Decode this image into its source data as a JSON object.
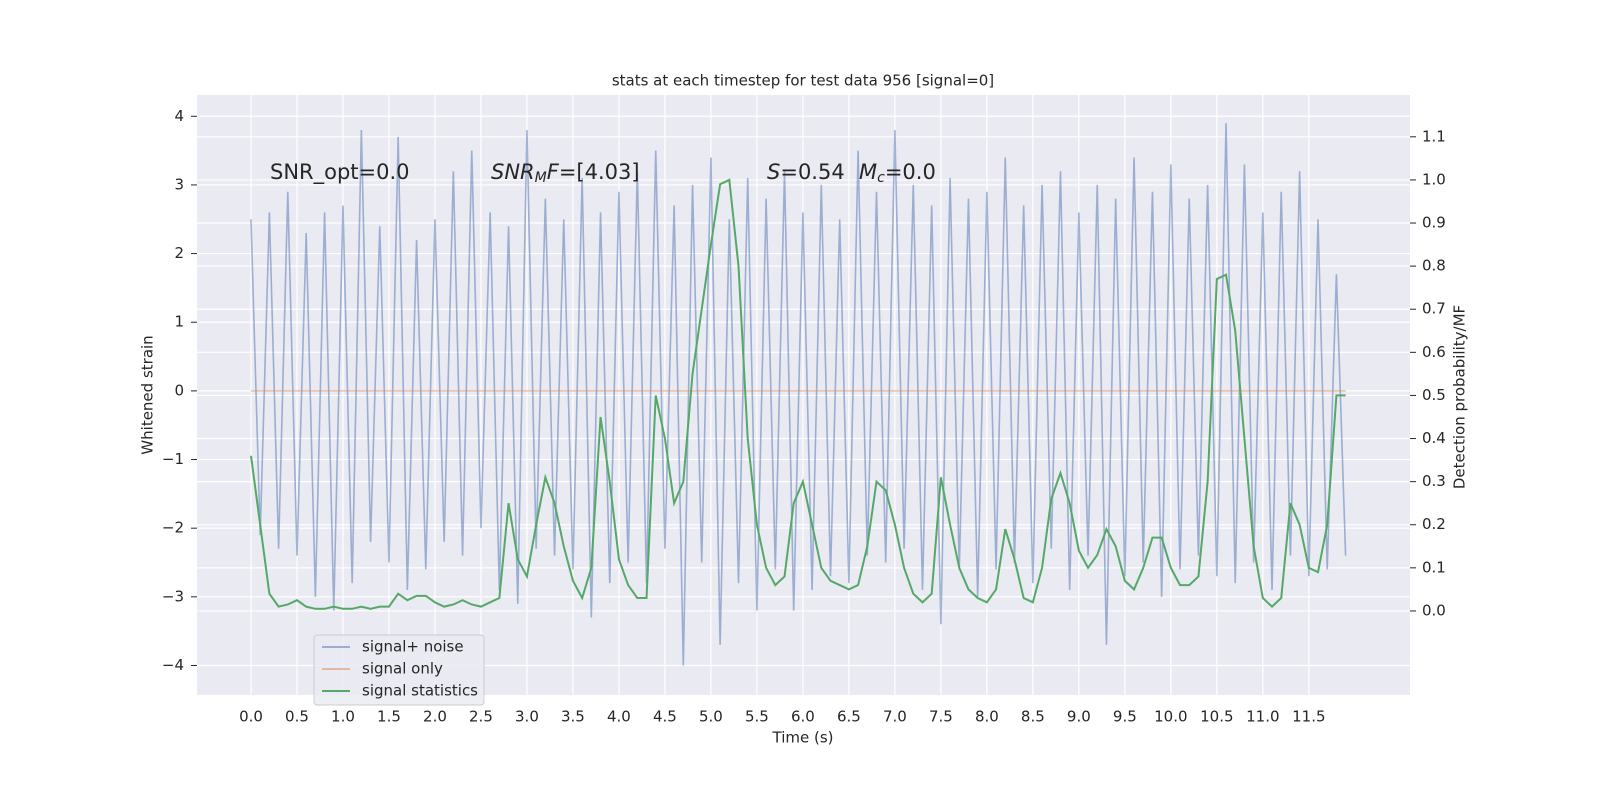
{
  "chart_data": {
    "type": "line",
    "title": "stats at each timestep for test data 956 [signal=0]",
    "xlabel": "Time (s)",
    "ylabel": "Whitened strain",
    "y2label": "Detection probability/MF",
    "background": "#eaeaf2",
    "grid": true,
    "legend_position": "lower left",
    "annotations": [
      {
        "text": "SNR_opt=0.0"
      },
      {
        "text": "SNR",
        "sub": "M",
        "text2": "F",
        "tail": "=[4.03]"
      },
      {
        "text": "S",
        "tail": "=0.54"
      },
      {
        "text": "M",
        "sub": "c",
        "tail": "=0.0"
      }
    ],
    "xlim": [
      -0.587,
      12.6
    ],
    "ylim": [
      -4.43,
      4.31
    ],
    "y2lim": [
      -0.195,
      1.197
    ],
    "xticks": [
      {
        "value": 0,
        "label": "0.0"
      },
      {
        "value": 0.5,
        "label": "0.5"
      },
      {
        "value": 1,
        "label": "1.0"
      },
      {
        "value": 1.5,
        "label": "1.5"
      },
      {
        "value": 2,
        "label": "2.0"
      },
      {
        "value": 2.5,
        "label": "2.5"
      },
      {
        "value": 3,
        "label": "3.0"
      },
      {
        "value": 3.5,
        "label": "3.5"
      },
      {
        "value": 4,
        "label": "4.0"
      },
      {
        "value": 4.5,
        "label": "4.5"
      },
      {
        "value": 5,
        "label": "5.0"
      },
      {
        "value": 5.5,
        "label": "5.5"
      },
      {
        "value": 6,
        "label": "6.0"
      },
      {
        "value": 6.5,
        "label": "6.5"
      },
      {
        "value": 7,
        "label": "7.0"
      },
      {
        "value": 7.5,
        "label": "7.5"
      },
      {
        "value": 8,
        "label": "8.0"
      },
      {
        "value": 8.5,
        "label": "8.5"
      },
      {
        "value": 9,
        "label": "9.0"
      },
      {
        "value": 9.5,
        "label": "9.5"
      },
      {
        "value": 10,
        "label": "10.0"
      },
      {
        "value": 10.5,
        "label": "10.5"
      },
      {
        "value": 11,
        "label": "11.0"
      },
      {
        "value": 11.5,
        "label": "11.5"
      }
    ],
    "yticks": [
      {
        "value": -4,
        "label": "−4"
      },
      {
        "value": -3,
        "label": "−3"
      },
      {
        "value": -2,
        "label": "−2"
      },
      {
        "value": -1,
        "label": "−1"
      },
      0,
      1,
      2,
      3,
      4
    ],
    "y2ticks": [
      {
        "value": 0,
        "label": "0.0"
      },
      {
        "value": 0.1,
        "label": "0.1"
      },
      {
        "value": 0.2,
        "label": "0.2"
      },
      {
        "value": 0.3,
        "label": "0.3"
      },
      {
        "value": 0.4,
        "label": "0.4"
      },
      {
        "value": 0.5,
        "label": "0.5"
      },
      {
        "value": 0.6,
        "label": "0.6"
      },
      {
        "value": 0.7,
        "label": "0.7"
      },
      {
        "value": 0.8,
        "label": "0.8"
      },
      {
        "value": 0.9,
        "label": "0.9"
      },
      {
        "value": 1.0,
        "label": "1.0"
      },
      {
        "value": 1.1,
        "label": "1.1"
      }
    ],
    "x": [
      0,
      0.1,
      0.2,
      0.3,
      0.4,
      0.5,
      0.6,
      0.7,
      0.8,
      0.9,
      1,
      1.1,
      1.2,
      1.3,
      1.4,
      1.5,
      1.6,
      1.7,
      1.8,
      1.9,
      2,
      2.1,
      2.2,
      2.3,
      2.4,
      2.5,
      2.6,
      2.7,
      2.8,
      2.9,
      3,
      3.1,
      3.2,
      3.3,
      3.4,
      3.5,
      3.6,
      3.7,
      3.8,
      3.9,
      4,
      4.1,
      4.2,
      4.3,
      4.4,
      4.5,
      4.6,
      4.7,
      4.8,
      4.9,
      5,
      5.1,
      5.2,
      5.3,
      5.4,
      5.5,
      5.6,
      5.7,
      5.8,
      5.9,
      6,
      6.1,
      6.2,
      6.3,
      6.4,
      6.5,
      6.6,
      6.7,
      6.8,
      6.9,
      7,
      7.1,
      7.2,
      7.3,
      7.4,
      7.5,
      7.6,
      7.7,
      7.8,
      7.9,
      8,
      8.1,
      8.2,
      8.3,
      8.4,
      8.5,
      8.6,
      8.7,
      8.8,
      8.9,
      9,
      9.1,
      9.2,
      9.3,
      9.4,
      9.5,
      9.6,
      9.7,
      9.8,
      9.9,
      10,
      10.1,
      10.2,
      10.3,
      10.4,
      10.5,
      10.6,
      10.7,
      10.8,
      10.9,
      11,
      11.1,
      11.2,
      11.3,
      11.4,
      11.5,
      11.6,
      11.7,
      11.8,
      11.9
    ],
    "series": [
      {
        "name": "signal+ noise",
        "color": "#4c72b0",
        "opacity": 0.5,
        "values": [
          2.5,
          -2.1,
          2.6,
          -2.3,
          2.9,
          -2.4,
          2.3,
          -3.0,
          2.6,
          -3.2,
          2.7,
          -2.8,
          3.8,
          -2.2,
          2.4,
          -2.5,
          3.7,
          -2.9,
          2.2,
          -2.6,
          2.5,
          -2.2,
          3.2,
          -2.4,
          3.5,
          -2.0,
          2.6,
          -2.9,
          2.4,
          -3.1,
          3.8,
          -2.3,
          2.8,
          -2.4,
          2.5,
          -2.6,
          3.1,
          -3.3,
          2.6,
          -2.8,
          2.9,
          -2.5,
          3.2,
          -2.8,
          3.5,
          -2.3,
          2.7,
          -4.0,
          3.0,
          -2.5,
          3.4,
          -3.7,
          2.5,
          -2.8,
          3.1,
          -3.2,
          2.8,
          -2.6,
          3.2,
          -3.2,
          2.6,
          -2.9,
          3.0,
          -2.7,
          2.5,
          -2.8,
          3.5,
          -2.4,
          2.9,
          -2.5,
          3.8,
          -2.3,
          3.0,
          -2.9,
          2.7,
          -3.4,
          3.1,
          -2.6,
          2.8,
          -3.0,
          2.9,
          -2.6,
          3.4,
          -2.5,
          2.7,
          -2.8,
          3.0,
          -2.3,
          3.2,
          -2.9,
          2.6,
          -2.4,
          3.0,
          -3.7,
          2.8,
          -2.7,
          3.4,
          -2.5,
          2.9,
          -3.0,
          3.3,
          -2.6,
          2.8,
          -2.4,
          3.0,
          -2.7,
          3.9,
          -2.8,
          3.3,
          -2.5,
          2.6,
          -2.9,
          2.9,
          -2.4,
          3.2,
          -2.7,
          2.5,
          -2.6,
          1.7,
          -2.4
        ]
      },
      {
        "name": "signal only",
        "color": "#dd8452",
        "opacity": 0.5,
        "values": [
          0,
          0,
          0,
          0,
          0,
          0,
          0,
          0,
          0,
          0,
          0,
          0,
          0,
          0,
          0,
          0,
          0,
          0,
          0,
          0,
          0,
          0,
          0,
          0,
          0,
          0,
          0,
          0,
          0,
          0,
          0,
          0,
          0,
          0,
          0,
          0,
          0,
          0,
          0,
          0,
          0,
          0,
          0,
          0,
          0,
          0,
          0,
          0,
          0,
          0,
          0,
          0,
          0,
          0,
          0,
          0,
          0,
          0,
          0,
          0,
          0,
          0,
          0,
          0,
          0,
          0,
          0,
          0,
          0,
          0,
          0,
          0,
          0,
          0,
          0,
          0,
          0,
          0,
          0,
          0,
          0,
          0,
          0,
          0,
          0,
          0,
          0,
          0,
          0,
          0,
          0,
          0,
          0,
          0,
          0,
          0,
          0,
          0,
          0,
          0,
          0,
          0,
          0,
          0,
          0,
          0,
          0,
          0,
          0,
          0,
          0,
          0,
          0,
          0,
          0,
          0,
          0,
          0,
          0,
          0
        ]
      },
      {
        "name": "signal statistics",
        "color": "#55a868",
        "opacity": 1,
        "axis": "y2",
        "values": [
          0.36,
          0.2,
          0.04,
          0.01,
          0.015,
          0.025,
          0.01,
          0.005,
          0.005,
          0.01,
          0.005,
          0.005,
          0.01,
          0.005,
          0.01,
          0.01,
          0.04,
          0.025,
          0.035,
          0.035,
          0.02,
          0.01,
          0.015,
          0.025,
          0.015,
          0.01,
          0.02,
          0.03,
          0.25,
          0.12,
          0.08,
          0.2,
          0.31,
          0.25,
          0.15,
          0.07,
          0.03,
          0.1,
          0.45,
          0.3,
          0.12,
          0.06,
          0.03,
          0.03,
          0.5,
          0.4,
          0.25,
          0.3,
          0.55,
          0.7,
          0.85,
          0.99,
          1.0,
          0.8,
          0.4,
          0.2,
          0.1,
          0.06,
          0.08,
          0.25,
          0.3,
          0.2,
          0.1,
          0.07,
          0.06,
          0.05,
          0.06,
          0.15,
          0.3,
          0.28,
          0.2,
          0.1,
          0.04,
          0.02,
          0.04,
          0.31,
          0.2,
          0.1,
          0.05,
          0.03,
          0.02,
          0.05,
          0.19,
          0.12,
          0.03,
          0.02,
          0.1,
          0.26,
          0.32,
          0.25,
          0.14,
          0.1,
          0.13,
          0.19,
          0.15,
          0.07,
          0.05,
          0.1,
          0.17,
          0.17,
          0.1,
          0.06,
          0.06,
          0.08,
          0.3,
          0.77,
          0.78,
          0.65,
          0.4,
          0.15,
          0.03,
          0.01,
          0.03,
          0.25,
          0.2,
          0.1,
          0.09,
          0.2,
          0.5,
          0.5
        ]
      }
    ]
  }
}
